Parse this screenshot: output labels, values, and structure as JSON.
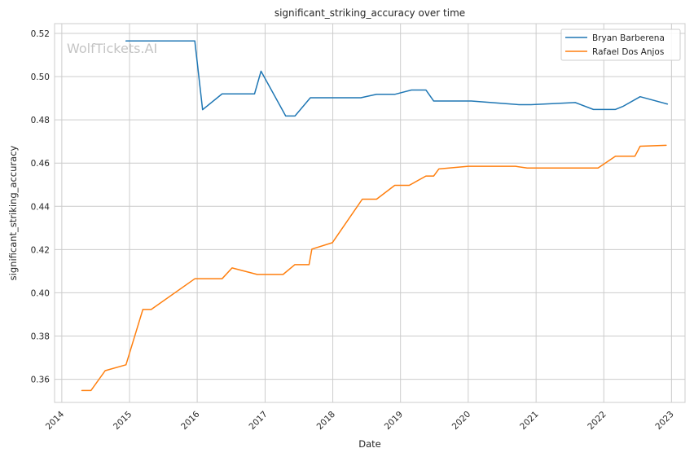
{
  "chart_data": {
    "type": "line",
    "title": "significant_striking_accuracy over time",
    "xlabel": "Date",
    "ylabel": "significant_striking_accuracy",
    "watermark": "WolfTickets.AI",
    "xlim": [
      "2013-11-23",
      "2023-03-15"
    ],
    "ylim": [
      0.3493,
      0.5245
    ],
    "xticks": [
      "2014-01-01",
      "2015-01-01",
      "2016-01-01",
      "2017-01-01",
      "2018-01-01",
      "2019-01-01",
      "2020-01-01",
      "2021-01-01",
      "2022-01-01",
      "2023-01-01"
    ],
    "xtick_labels": [
      "2014",
      "2015",
      "2016",
      "2017",
      "2018",
      "2019",
      "2020",
      "2021",
      "2022",
      "2023"
    ],
    "yticks": [
      0.36,
      0.38,
      0.4,
      0.42,
      0.44,
      0.46,
      0.48,
      0.5,
      0.52
    ],
    "ytick_labels": [
      "0.36",
      "0.38",
      "0.40",
      "0.42",
      "0.44",
      "0.46",
      "0.48",
      "0.50",
      "0.52"
    ],
    "grid": true,
    "legend_position": "top-right",
    "series": [
      {
        "name": "Bryan Barberena",
        "color": "#1f77b4",
        "points": [
          [
            "2014-12-13",
            0.5165
          ],
          [
            "2015-12-19",
            0.5165
          ],
          [
            "2016-01-30",
            0.4847
          ],
          [
            "2016-05-14",
            0.492
          ],
          [
            "2016-11-05",
            0.492
          ],
          [
            "2016-12-10",
            0.5025
          ],
          [
            "2017-04-22",
            0.4818
          ],
          [
            "2017-06-11",
            0.4818
          ],
          [
            "2017-09-02",
            0.4902
          ],
          [
            "2018-06-01",
            0.4902
          ],
          [
            "2018-08-25",
            0.4918
          ],
          [
            "2018-12-01",
            0.4918
          ],
          [
            "2019-03-01",
            0.4938
          ],
          [
            "2019-05-18",
            0.4938
          ],
          [
            "2019-06-29",
            0.4887
          ],
          [
            "2020-01-18",
            0.4887
          ],
          [
            "2020-10-03",
            0.487
          ],
          [
            "2020-12-05",
            0.487
          ],
          [
            "2021-07-31",
            0.488
          ],
          [
            "2021-11-06",
            0.4848
          ],
          [
            "2022-03-05",
            0.4848
          ],
          [
            "2022-04-16",
            0.4863
          ],
          [
            "2022-07-16",
            0.4907
          ],
          [
            "2022-12-10",
            0.4873
          ]
        ]
      },
      {
        "name": "Rafael Dos Anjos",
        "color": "#ff7f0e",
        "points": [
          [
            "2014-04-19",
            0.3548
          ],
          [
            "2014-06-07",
            0.3548
          ],
          [
            "2014-08-23",
            0.364
          ],
          [
            "2014-12-13",
            0.3667
          ],
          [
            "2015-03-14",
            0.3923
          ],
          [
            "2015-04-28",
            0.3923
          ],
          [
            "2015-12-19",
            0.4065
          ],
          [
            "2016-05-14",
            0.4065
          ],
          [
            "2016-07-07",
            0.4115
          ],
          [
            "2016-11-19",
            0.4085
          ],
          [
            "2017-04-08",
            0.4085
          ],
          [
            "2017-06-10",
            0.413
          ],
          [
            "2017-08-26",
            0.413
          ],
          [
            "2017-09-10",
            0.4202
          ],
          [
            "2017-12-30",
            0.4232
          ],
          [
            "2018-06-09",
            0.4433
          ],
          [
            "2018-08-25",
            0.4433
          ],
          [
            "2018-12-01",
            0.4497
          ],
          [
            "2019-02-17",
            0.4497
          ],
          [
            "2019-05-18",
            0.454
          ],
          [
            "2019-06-29",
            0.454
          ],
          [
            "2019-07-27",
            0.4573
          ],
          [
            "2020-01-01",
            0.4585
          ],
          [
            "2020-09-12",
            0.4585
          ],
          [
            "2020-11-14",
            0.4577
          ],
          [
            "2021-12-01",
            0.4577
          ],
          [
            "2022-03-05",
            0.4632
          ],
          [
            "2022-06-18",
            0.4632
          ],
          [
            "2022-07-16",
            0.4678
          ],
          [
            "2022-12-03",
            0.4682
          ]
        ]
      }
    ]
  }
}
